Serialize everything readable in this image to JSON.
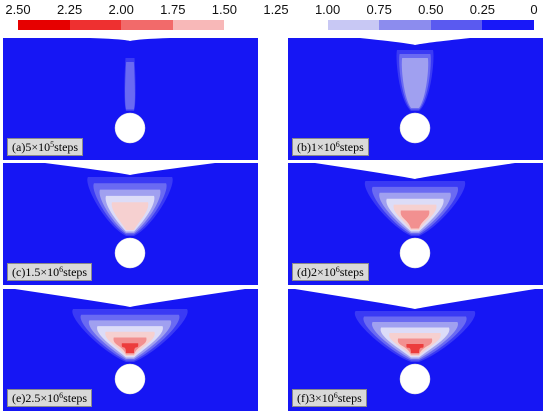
{
  "legend": {
    "ticks": [
      "2.50",
      "2.25",
      "2.00",
      "1.75",
      "1.50",
      "1.25",
      "1.00",
      "0.75",
      "0.50",
      "0.25",
      "0"
    ],
    "colors": [
      "#e60000",
      "#ee3030",
      "#f26a6a",
      "#f8b8b8",
      "#ffffff",
      "#ffffff",
      "#c8c8f4",
      "#8c8cee",
      "#5a5af0",
      "#1818f8"
    ]
  },
  "background_color": "#1616f4",
  "panels": [
    {
      "id": "a",
      "prefix": "(a)5×10",
      "exp": "5",
      "suffix": "steps",
      "stage": 1
    },
    {
      "id": "b",
      "prefix": "(b)1×10",
      "exp": "6",
      "suffix": "steps",
      "stage": 2
    },
    {
      "id": "c",
      "prefix": "(c)1.5×10",
      "exp": "6",
      "suffix": "steps",
      "stage": 3
    },
    {
      "id": "d",
      "prefix": "(d)2×10",
      "exp": "6",
      "suffix": "steps",
      "stage": 4
    },
    {
      "id": "e",
      "prefix": "(e)2.5×10",
      "exp": "6",
      "suffix": "steps",
      "stage": 5
    },
    {
      "id": "f",
      "prefix": "(f)3×10",
      "exp": "6",
      "suffix": "steps",
      "stage": 6
    }
  ]
}
